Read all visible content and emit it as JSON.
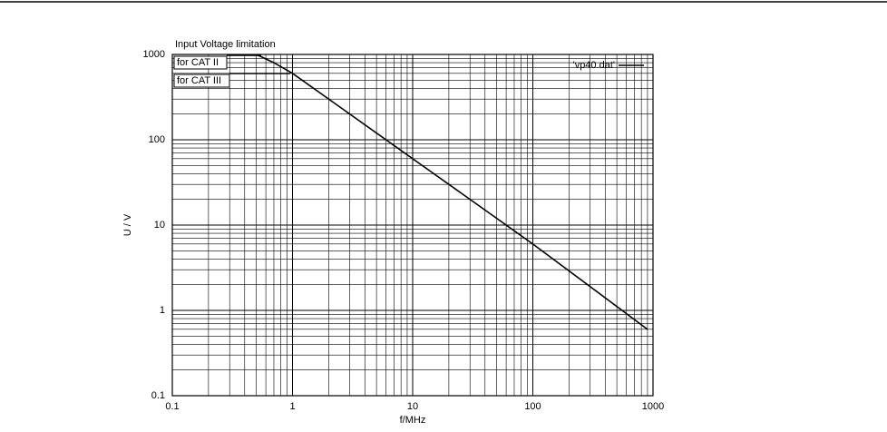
{
  "chart_data": {
    "type": "line",
    "annotations": [
      "Input Voltage limitation",
      "for CAT II",
      "for CAT III"
    ],
    "x_label": "f/MHz",
    "y_label": "U / V",
    "x": [
      0.5,
      0.7,
      1,
      10,
      100,
      900
    ],
    "series": [
      {
        "name": "'vp40.dat'",
        "color": "#000000",
        "values": [
          1000,
          800,
          600,
          60,
          6,
          0.6
        ]
      }
    ],
    "xlim": [
      0.1,
      1000
    ],
    "ylim": [
      0.1,
      1000
    ],
    "xticks": [
      0.1,
      1,
      10,
      100,
      1000
    ],
    "yticks": [
      0.1,
      1,
      10,
      100,
      1000
    ],
    "x_log": true,
    "y_log": true,
    "grid": true,
    "minor_grid": true,
    "legend": "upper right"
  }
}
